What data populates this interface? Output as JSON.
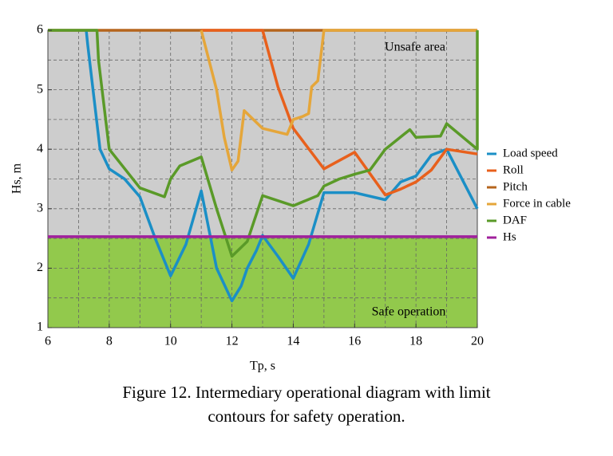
{
  "chart_data": {
    "type": "line",
    "xlabel": "Tp, s",
    "ylabel": "Hs, m",
    "xlim": [
      6,
      20
    ],
    "ylim": [
      1,
      6
    ],
    "xticks": [
      6,
      8,
      10,
      12,
      14,
      16,
      18,
      20
    ],
    "yticks": [
      1,
      2,
      3,
      4,
      5,
      6
    ],
    "xminor": [
      7,
      9,
      11,
      13,
      15,
      17,
      19
    ],
    "yminor": [
      1.5,
      2.5,
      3.5,
      4.5,
      5.5
    ],
    "grid": true,
    "legend": "right",
    "annotations": [
      "Unsafe area",
      "Safe operation"
    ],
    "unsafe_color": "#cdcdcd",
    "safe_color": "#92c94c",
    "series": [
      {
        "name": "Load speed",
        "color": "#1b8fc6",
        "x": [
          7.25,
          7.3,
          7.7,
          8,
          8.5,
          9,
          9.5,
          10,
          10.5,
          11,
          11.5,
          12,
          12.3,
          12.5,
          12.8,
          13,
          13.5,
          14,
          14.5,
          15,
          15.5,
          16,
          17,
          17.5,
          18,
          18.5,
          19,
          20
        ],
        "values": [
          6,
          5.75,
          4.0,
          3.67,
          3.5,
          3.2,
          2.5,
          1.87,
          2.4,
          3.3,
          2.0,
          1.45,
          1.7,
          2.0,
          2.3,
          2.55,
          2.2,
          1.83,
          2.4,
          3.27,
          3.27,
          3.27,
          3.15,
          3.45,
          3.55,
          3.9,
          4.0,
          3.0
        ]
      },
      {
        "name": "Roll",
        "color": "#e8601c",
        "x": [
          11,
          13,
          13.5,
          14,
          15,
          16,
          17,
          17.5,
          18,
          18.5,
          19,
          20
        ],
        "values": [
          6,
          6,
          5.05,
          4.35,
          3.67,
          3.95,
          3.23,
          3.33,
          3.45,
          3.65,
          4.0,
          3.92
        ]
      },
      {
        "name": "Pitch",
        "color": "#b5651d",
        "x": [
          6,
          20
        ],
        "values": [
          6,
          6
        ]
      },
      {
        "name": "Force in cable",
        "color": "#e5a63a",
        "x": [
          11,
          11.5,
          11.75,
          12,
          12.2,
          12.4,
          13,
          13.8,
          14,
          14.3,
          14.5,
          14.6,
          14.8,
          15,
          20
        ],
        "values": [
          6,
          5.0,
          4.2,
          3.65,
          3.8,
          4.65,
          4.35,
          4.25,
          4.5,
          4.55,
          4.6,
          5.05,
          5.15,
          6,
          6
        ]
      },
      {
        "name": "DAF",
        "color": "#5a9a28",
        "x": [
          6,
          7.6,
          7.65,
          8,
          9,
          9.8,
          10,
          10.3,
          11,
          11.5,
          12,
          12.5,
          13,
          14,
          14.8,
          15,
          15.5,
          16,
          16.5,
          17,
          17.8,
          18,
          18.8,
          19,
          20,
          20
        ],
        "values": [
          6,
          6,
          5.5,
          4.0,
          3.35,
          3.2,
          3.5,
          3.72,
          3.87,
          3.0,
          2.2,
          2.45,
          3.22,
          3.05,
          3.22,
          3.38,
          3.5,
          3.58,
          3.65,
          4.0,
          4.33,
          4.2,
          4.22,
          4.43,
          4.0,
          6
        ]
      },
      {
        "name": "Hs",
        "color": "#a0209c",
        "x": [
          6,
          20
        ],
        "values": [
          2.53,
          2.53
        ]
      }
    ],
    "caption": [
      "Figure 12.   Intermediary operational diagram with limit",
      "contours for safety operation."
    ]
  }
}
